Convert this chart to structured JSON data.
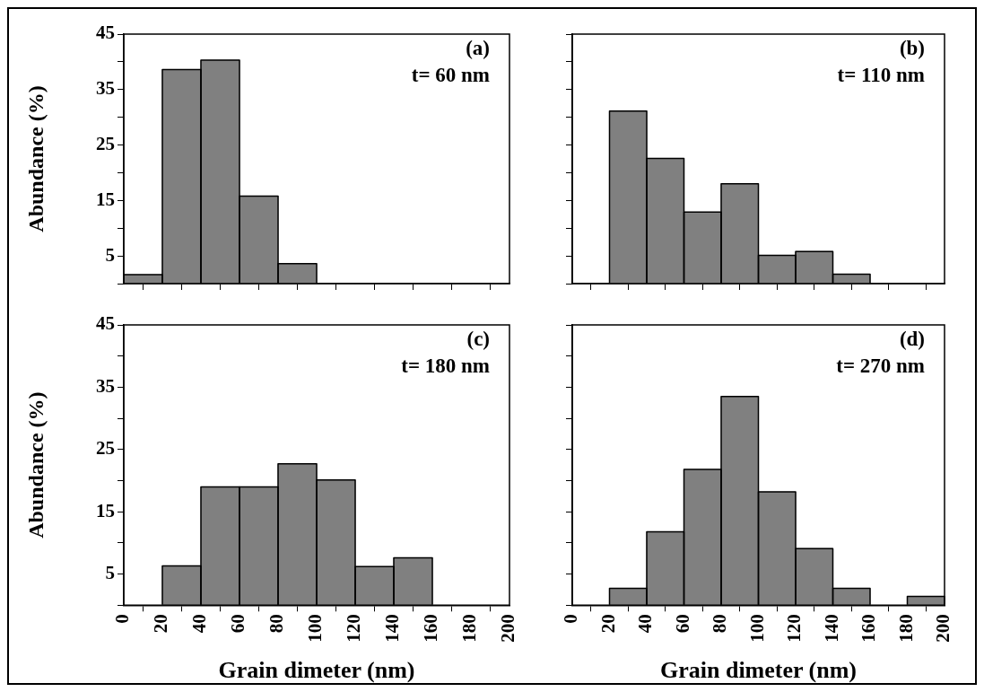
{
  "chart_data": [
    {
      "type": "histogram",
      "ylabel": "Abundance (%)",
      "annotations": [
        "(a)",
        "t= 60 nm"
      ],
      "bins": [
        0,
        20,
        40,
        60,
        80,
        100,
        120,
        140,
        160,
        180,
        200
      ],
      "values": [
        1.6,
        38.6,
        40.3,
        15.8,
        3.6,
        0,
        0,
        0,
        0,
        0
      ],
      "color": "#808080",
      "xlim": [
        0,
        200
      ],
      "xticks": [
        0,
        20,
        40,
        60,
        80,
        100,
        120,
        140,
        160,
        180,
        200
      ],
      "ylim": [
        0,
        45
      ],
      "yticks": [
        {
          "value": 0,
          "label": null
        },
        5,
        {
          "value": 10,
          "label": null
        },
        15,
        {
          "value": 20,
          "label": null
        },
        25,
        {
          "value": 30,
          "label": null
        },
        35,
        {
          "value": 40,
          "label": null
        },
        45
      ],
      "tick_labels": "y"
    },
    {
      "type": "histogram",
      "annotations": [
        "(b)",
        "t= 110 nm"
      ],
      "bins": [
        0,
        20,
        40,
        60,
        80,
        100,
        120,
        140,
        160,
        180,
        200
      ],
      "values": [
        0,
        31.1,
        22.6,
        12.9,
        18.0,
        5.1,
        5.8,
        1.7,
        0,
        0
      ],
      "color": "#808080",
      "xlim": [
        0,
        200
      ],
      "xticks": [
        0,
        20,
        40,
        60,
        80,
        100,
        120,
        140,
        160,
        180,
        200
      ],
      "ylim": [
        0,
        45
      ],
      "yticks": [
        {
          "value": 0,
          "label": null
        },
        5,
        {
          "value": 10,
          "label": null
        },
        15,
        {
          "value": 20,
          "label": null
        },
        25,
        {
          "value": 30,
          "label": null
        },
        35,
        {
          "value": 40,
          "label": null
        },
        45
      ],
      "tick_labels": false
    },
    {
      "type": "histogram",
      "xlabel": "Grain dimeter (nm)",
      "ylabel": "Abundance (%)",
      "annotations": [
        "(c)",
        "t= 180 nm"
      ],
      "bins": [
        0,
        20,
        40,
        60,
        80,
        100,
        120,
        140,
        160,
        180,
        200
      ],
      "values": [
        0,
        6.3,
        19.0,
        19.0,
        22.7,
        20.1,
        6.2,
        7.6,
        0,
        0
      ],
      "color": "#808080",
      "xlim": [
        0,
        200
      ],
      "xticks": [
        0,
        20,
        40,
        60,
        80,
        100,
        120,
        140,
        160,
        180,
        200
      ],
      "ylim": [
        0,
        45
      ],
      "yticks": [
        {
          "value": 0,
          "label": null
        },
        5,
        {
          "value": 10,
          "label": null
        },
        15,
        {
          "value": 20,
          "label": null
        },
        25,
        {
          "value": 30,
          "label": null
        },
        35,
        {
          "value": 40,
          "label": null
        },
        45
      ]
    },
    {
      "type": "histogram",
      "xlabel": "Grain dimeter (nm)",
      "annotations": [
        "(d)",
        "t= 270 nm"
      ],
      "bins": [
        0,
        20,
        40,
        60,
        80,
        100,
        120,
        140,
        160,
        180,
        200
      ],
      "values": [
        0,
        2.7,
        11.8,
        21.8,
        33.5,
        18.2,
        9.1,
        2.7,
        0,
        1.4
      ],
      "color": "#808080",
      "xlim": [
        0,
        200
      ],
      "xticks": [
        0,
        20,
        40,
        60,
        80,
        100,
        120,
        140,
        160,
        180,
        200
      ],
      "ylim": [
        0,
        45
      ],
      "yticks": [
        {
          "value": 0,
          "label": null
        },
        5,
        {
          "value": 10,
          "label": null
        },
        15,
        {
          "value": 20,
          "label": null
        },
        25,
        {
          "value": 30,
          "label": null
        },
        35,
        {
          "value": 40,
          "label": null
        },
        45
      ],
      "tick_labels": "x"
    }
  ]
}
